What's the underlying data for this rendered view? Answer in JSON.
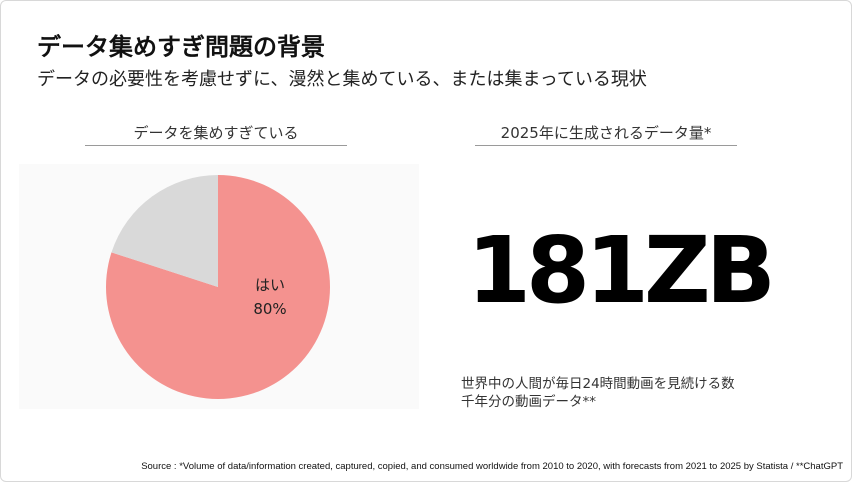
{
  "slide": {
    "title": "データ集めすぎ問題の背景",
    "subtitle": "データの必要性を考慮せずに、漫然と集めている、または集まっている現状",
    "left_heading": "データを集めすぎている",
    "right_heading": "2025年に生成されるデータ量*",
    "big_number": "181ZB",
    "note_line1": "世界中の人間が毎日24時間動画を見続ける数",
    "note_line2": "千年分の動画データ**",
    "source": "Source : *Volume of data/information created, captured, copied, and consumed worldwide from 2010 to 2020, with forecasts from 2021 to 2025 by Statista / **ChatGPT"
  },
  "chart_data": {
    "type": "pie",
    "slices": [
      {
        "label": "はい",
        "value_label": "80%",
        "value": 80,
        "color": "#f4928f"
      },
      {
        "label": "",
        "value_label": "",
        "value": 20,
        "color": "#d9d9d9"
      }
    ]
  },
  "colors": {
    "pie_yes": "#f4928f",
    "pie_other": "#d9d9d9",
    "panel_background": "#fafafa"
  }
}
